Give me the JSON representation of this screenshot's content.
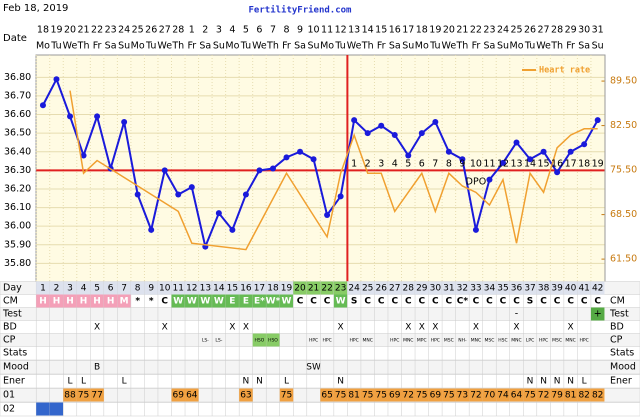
{
  "header": {
    "date": "Feb 18, 2019",
    "site": "FertilityFriend.com"
  },
  "chart_data": {
    "type": "line",
    "date_label": "Date",
    "dates": [
      "18",
      "19",
      "20",
      "21",
      "22",
      "23",
      "24",
      "25",
      "26",
      "27",
      "28",
      "1",
      "2",
      "3",
      "4",
      "5",
      "6",
      "7",
      "8",
      "9",
      "10",
      "11",
      "12",
      "13",
      "14",
      "15",
      "16",
      "17",
      "18",
      "19",
      "20",
      "21",
      "22",
      "23",
      "24",
      "25",
      "26",
      "27",
      "28",
      "29",
      "30",
      "31"
    ],
    "weekdays": [
      "Mo",
      "Tu",
      "We",
      "Th",
      "Fr",
      "Sa",
      "Su",
      "Mo",
      "Tu",
      "We",
      "Th",
      "Fr",
      "Sa",
      "Su",
      "Mo",
      "Tu",
      "We",
      "Th",
      "Fr",
      "Sa",
      "Su",
      "Mo",
      "Tu",
      "We",
      "Th",
      "Fr",
      "Sa",
      "Su",
      "Mo",
      "Tu",
      "We",
      "Th",
      "Fr",
      "Sa",
      "Su",
      "Mo",
      "Tu",
      "We",
      "Th",
      "Fr",
      "Sa",
      "Su"
    ],
    "ylim": [
      35.7,
      36.92
    ],
    "yticks": [
      {
        "value": 36.8,
        "label": "36.80"
      },
      {
        "value": 36.7,
        "label": "36.70"
      },
      {
        "value": 36.6,
        "label": "36.60"
      },
      {
        "value": 36.5,
        "label": "36.50"
      },
      {
        "value": 36.4,
        "label": "36.40"
      },
      {
        "value": 36.3,
        "label": "36.30"
      },
      {
        "value": 36.2,
        "label": "36.20"
      },
      {
        "value": 36.1,
        "label": "36.10"
      },
      {
        "value": 36.0,
        "label": "36.00"
      },
      {
        "value": 35.9,
        "label": "35.90"
      },
      {
        "value": 35.8,
        "label": "35.80"
      }
    ],
    "y2lim": [
      57.9,
      93.6
    ],
    "y2ticks": [
      {
        "value": 89.5,
        "label": "89.50"
      },
      {
        "value": 82.5,
        "label": "82.50"
      },
      {
        "value": 75.5,
        "label": "75.50"
      },
      {
        "value": 68.5,
        "label": "68.50"
      },
      {
        "value": 61.5,
        "label": "61.50"
      }
    ],
    "cover_line": 36.3,
    "ovulation_day": 23,
    "series": [
      {
        "color": "#1a1adb",
        "values": [
          36.65,
          36.79,
          36.59,
          36.38,
          36.59,
          36.31,
          36.56,
          36.17,
          35.98,
          36.3,
          36.17,
          36.21,
          35.89,
          36.07,
          35.98,
          36.17,
          36.3,
          36.31,
          36.37,
          36.4,
          36.36,
          36.06,
          36.16,
          36.57,
          36.5,
          36.54,
          36.49,
          36.38,
          36.5,
          36.56,
          36.4,
          36.36,
          35.98,
          36.25,
          36.34,
          36.45,
          36.36,
          36.4,
          36.29,
          36.4,
          36.44,
          36.57
        ]
      },
      {
        "name": "Heart rate",
        "color": "#f0a030",
        "axis": "y2",
        "x": [
          3,
          4,
          5,
          11,
          12,
          16,
          19,
          22,
          23,
          24,
          25,
          26,
          27,
          28,
          29,
          30,
          31,
          32,
          33,
          34,
          35,
          36,
          37,
          38,
          39,
          40,
          41,
          42
        ],
        "values": [
          88,
          75,
          77,
          69,
          64,
          63,
          75,
          65,
          75,
          81,
          75,
          75,
          69,
          72,
          75,
          69,
          75,
          73,
          72,
          70,
          74,
          64,
          75,
          72,
          79,
          81,
          82,
          82
        ]
      }
    ],
    "legend": "upper right",
    "dpo": {
      "start_day": 24,
      "labels": [
        1,
        2,
        3,
        4,
        5,
        6,
        7,
        8,
        9,
        10,
        11,
        12,
        13,
        14,
        15,
        16,
        17,
        18,
        19
      ],
      "text": "DPO"
    }
  },
  "table": {
    "row_labels": [
      "Day",
      "CM",
      "Test",
      "BD",
      "CP",
      "Stats",
      "Mood",
      "Ener",
      "01",
      "02"
    ],
    "days": [
      1,
      2,
      3,
      4,
      5,
      6,
      7,
      8,
      9,
      10,
      11,
      12,
      13,
      14,
      15,
      16,
      17,
      18,
      19,
      20,
      21,
      22,
      23,
      24,
      25,
      26,
      27,
      28,
      29,
      30,
      31,
      32,
      33,
      34,
      35,
      36,
      37,
      38,
      39,
      40,
      41,
      42
    ],
    "cm": [
      "H",
      "H",
      "H",
      "H",
      "H",
      "H",
      "M",
      "*",
      "*",
      "C",
      "W",
      "W",
      "W",
      "W",
      "E",
      "E",
      "E*",
      "W*",
      "W",
      "C",
      "C",
      "C",
      "W",
      "S",
      "C",
      "C",
      "C",
      "C",
      "C",
      "C",
      "C",
      "C*",
      "C",
      "C",
      "C",
      "C",
      "S",
      "C",
      "C",
      "C",
      "C",
      "C"
    ],
    "test": [
      null,
      null,
      null,
      null,
      null,
      null,
      null,
      null,
      null,
      null,
      null,
      null,
      null,
      null,
      null,
      null,
      null,
      null,
      null,
      null,
      null,
      null,
      null,
      null,
      null,
      null,
      null,
      null,
      null,
      null,
      null,
      null,
      null,
      null,
      null,
      "-",
      null,
      null,
      null,
      null,
      null,
      "+"
    ],
    "bd": [
      null,
      null,
      null,
      null,
      "X",
      null,
      null,
      null,
      null,
      "X",
      null,
      null,
      null,
      null,
      "X",
      "X",
      null,
      null,
      null,
      null,
      null,
      null,
      "X",
      null,
      null,
      null,
      null,
      "X",
      "X",
      "X",
      null,
      null,
      "X",
      null,
      null,
      "X",
      null,
      null,
      null,
      "X",
      null,
      null
    ],
    "cp": [
      null,
      null,
      null,
      null,
      null,
      null,
      null,
      null,
      null,
      null,
      null,
      null,
      "LS-",
      "LS-",
      null,
      null,
      "HSO",
      "HSO",
      null,
      null,
      "HPC",
      "HPC",
      null,
      "HPC",
      "MNC",
      null,
      "HPC",
      "MNC",
      "MPC",
      "HPC",
      "MSC",
      "NH-",
      "MNC",
      "MSC",
      "HSC",
      "MNC",
      "LPC",
      "HPC",
      "MSC",
      "MNC",
      "HPC",
      null
    ],
    "mood": [
      null,
      null,
      null,
      null,
      "B",
      null,
      null,
      null,
      null,
      null,
      null,
      null,
      null,
      null,
      null,
      null,
      null,
      null,
      null,
      null,
      "SW",
      null,
      null,
      null,
      null,
      null,
      null,
      null,
      null,
      null,
      null,
      null,
      null,
      null,
      null,
      null,
      null,
      null,
      null,
      null,
      null,
      null
    ],
    "ener": [
      null,
      null,
      "L",
      "L",
      null,
      null,
      "L",
      null,
      null,
      null,
      null,
      null,
      null,
      null,
      null,
      "N",
      "N",
      null,
      "L",
      null,
      null,
      null,
      "N",
      null,
      null,
      null,
      null,
      null,
      null,
      null,
      null,
      null,
      null,
      null,
      null,
      null,
      "N",
      "N",
      "N",
      "N",
      "L",
      null
    ]
  }
}
